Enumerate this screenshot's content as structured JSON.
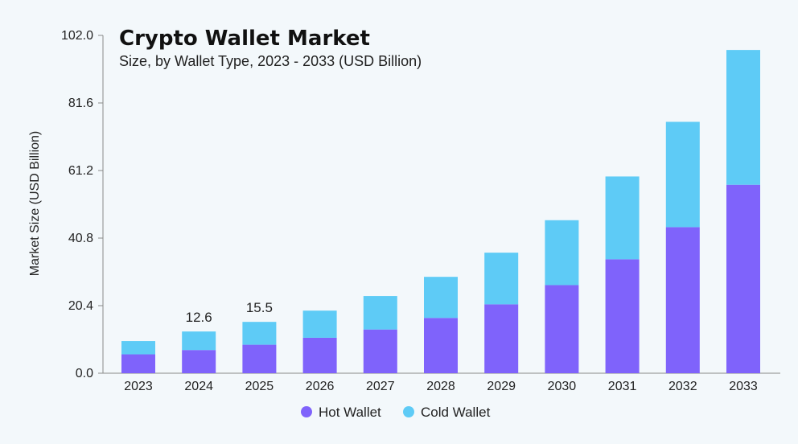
{
  "chart_data": {
    "type": "bar",
    "stacked": true,
    "title": "Crypto Wallet Market",
    "subtitle": "Size, by Wallet Type, 2023 - 2033 (USD Billion)",
    "xlabel": "",
    "ylabel": "Market Size (USD Billion)",
    "ylim": [
      0,
      102.0
    ],
    "yticks": [
      "0.0",
      "20.4",
      "40.8",
      "61.2",
      "81.6",
      "102.0"
    ],
    "categories": [
      "2023",
      "2024",
      "2025",
      "2026",
      "2027",
      "2028",
      "2029",
      "2030",
      "2031",
      "2032",
      "2033"
    ],
    "series": [
      {
        "name": "Hot Wallet",
        "color": "#7f63fb",
        "values": [
          5.7,
          7.0,
          8.6,
          10.7,
          13.2,
          16.7,
          20.8,
          26.6,
          34.4,
          44.1,
          56.9
        ]
      },
      {
        "name": "Cold Wallet",
        "color": "#5ecbf6",
        "values": [
          4.0,
          5.6,
          6.9,
          8.2,
          10.1,
          12.4,
          15.6,
          19.6,
          25.0,
          31.8,
          40.7
        ]
      }
    ],
    "data_labels": [
      {
        "category": "2024",
        "text": "12.6"
      },
      {
        "category": "2025",
        "text": "15.5"
      }
    ],
    "grid": false,
    "legend_position": "bottom-center"
  }
}
